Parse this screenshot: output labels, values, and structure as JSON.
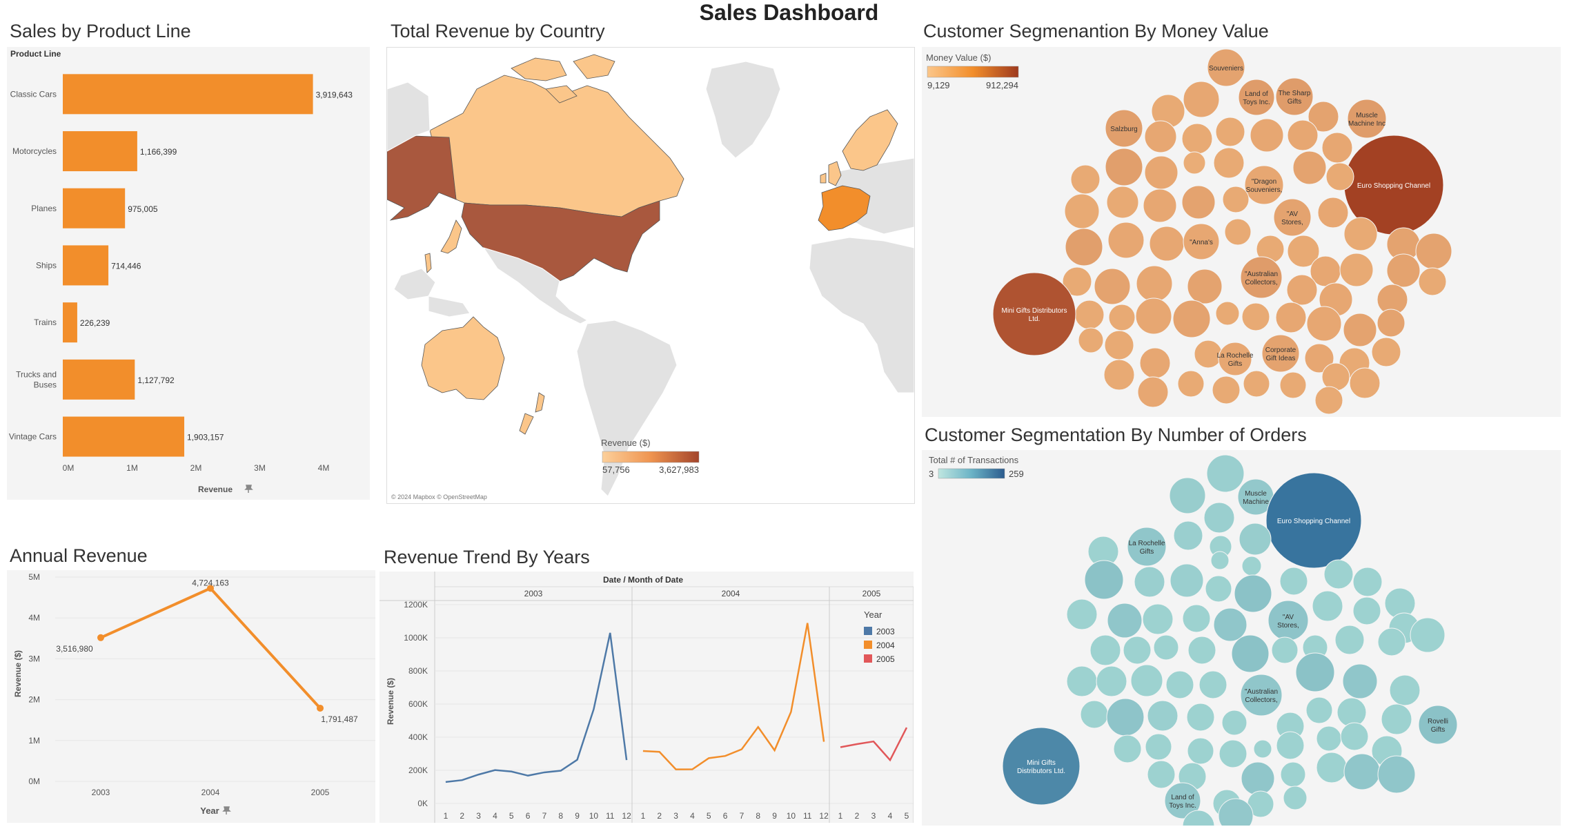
{
  "dashboard": {
    "title": "Sales Dashboard"
  },
  "colors": {
    "orange": "#f28e2b",
    "blue2003": "#4e79a7",
    "orange2004": "#f28e2b",
    "red2005": "#e15759",
    "teal_light": "#a9ddd6",
    "teal_dark": "#2e6b99",
    "money_low": "#fbc68a",
    "money_high": "#9e3a1e"
  },
  "product_line": {
    "title": "Sales by Product Line",
    "header": "Product Line",
    "axis_label": "Revenue",
    "chart_data": {
      "type": "bar",
      "orientation": "horizontal",
      "categories": [
        "Classic Cars",
        "Motorcycles",
        "Planes",
        "Ships",
        "Trains",
        "Trucks and Buses",
        "Vintage Cars"
      ],
      "category_lines": [
        [
          "Classic Cars"
        ],
        [
          "Motorcycles"
        ],
        [
          "Planes"
        ],
        [
          "Ships"
        ],
        [
          "Trains"
        ],
        [
          "Trucks and",
          "Buses"
        ],
        [
          "Vintage Cars"
        ]
      ],
      "values": [
        3919643,
        1166399,
        975005,
        714446,
        226239,
        1127792,
        1903157
      ],
      "value_labels": [
        "3,919,643",
        "1,166,399",
        "975,005",
        "714,446",
        "226,239",
        "1,127,792",
        "1,903,157"
      ],
      "xlim": [
        0,
        4400000
      ],
      "ticks": [
        0,
        1000000,
        2000000,
        3000000,
        4000000
      ],
      "tick_labels": [
        "0M",
        "1M",
        "2M",
        "3M",
        "4M"
      ],
      "xlabel": "Revenue"
    }
  },
  "country": {
    "title": "Total Revenue by Country",
    "legend_title": "Revenue ($)",
    "legend_min": "57,756",
    "legend_max": "3,627,983",
    "attribution": "© 2024 Mapbox © OpenStreetMap"
  },
  "money_seg": {
    "title": "Customer Segmenantion By Money Value",
    "legend_title": "Money Value ($)",
    "legend_min": "9,129",
    "legend_max": "912,294",
    "labels": {
      "souveniers": [
        "Souveniers"
      ],
      "land_of_toys": [
        "Land of",
        "Toys Inc."
      ],
      "sharp_gifts": [
        "The Sharp",
        "Gifts"
      ],
      "muscle": [
        "Muscle",
        "Machine Inc"
      ],
      "salzburg": [
        "Salzburg"
      ],
      "euro": [
        "Euro Shopping Channel"
      ],
      "dragon": [
        "\"Dragon",
        "Souveniers,"
      ],
      "av": [
        "\"AV",
        "Stores,"
      ],
      "annas": [
        "\"Anna's"
      ],
      "australian": [
        "\"Australian",
        "Collectors,"
      ],
      "mini": [
        "Mini Gifts Distributors",
        "Ltd."
      ],
      "la_rochelle": [
        "La Rochelle",
        "Gifts"
      ],
      "corporate": [
        "Corporate",
        "Gift Ideas"
      ]
    }
  },
  "orders_seg": {
    "title": "Customer Segmentation By Number of Orders",
    "legend_title": "Total # of Transactions",
    "legend_min": "3",
    "legend_max": "259",
    "labels": {
      "muscle": [
        "Muscle",
        "Machine"
      ],
      "euro": [
        "Euro Shopping Channel"
      ],
      "la_rochelle": [
        "La Rochelle",
        "Gifts"
      ],
      "av": [
        "\"AV",
        "Stores,"
      ],
      "australian": [
        "\"Australian",
        "Collectors,"
      ],
      "rovelli": [
        "Rovelli",
        "Gifts"
      ],
      "mini": [
        "Mini Gifts",
        "Distributors Ltd."
      ],
      "land_of_toys": [
        "Land of",
        "Toys Inc."
      ]
    }
  },
  "annual": {
    "title": "Annual Revenue",
    "chart_data": {
      "type": "line",
      "categories": [
        "2003",
        "2004",
        "2005"
      ],
      "values": [
        3516980,
        4724163,
        1791487
      ],
      "value_labels": [
        "3,516,980",
        "4,724,163",
        "1,791,487"
      ],
      "ylim": [
        0,
        5000000
      ],
      "ticks": [
        0,
        1000000,
        2000000,
        3000000,
        4000000,
        5000000
      ],
      "tick_labels": [
        "0M",
        "1M",
        "2M",
        "3M",
        "4M",
        "5M"
      ],
      "xlabel": "Year",
      "ylabel": "Revenue ($)"
    }
  },
  "trend": {
    "title": "Revenue Trend By Years",
    "header": "Date  /  Month of Date",
    "legend_title": "Year",
    "chart_data": {
      "type": "line",
      "ylabel": "Revenue ($)",
      "ylim": [
        0,
        1200000
      ],
      "ticks": [
        0,
        200000,
        400000,
        600000,
        800000,
        1000000,
        1200000
      ],
      "tick_labels": [
        "0K",
        "200K",
        "400K",
        "600K",
        "800K",
        "1000K",
        "1200K"
      ],
      "series": [
        {
          "name": "2003",
          "x": [
            1,
            2,
            3,
            4,
            5,
            6,
            7,
            8,
            9,
            10,
            11,
            12
          ],
          "values": [
            129754,
            140836,
            174505,
            201609,
            192673,
            168083,
            187731,
            197810,
            263973,
            568291,
            1029838,
            261876
          ]
        },
        {
          "name": "2004",
          "x": [
            1,
            2,
            3,
            4,
            5,
            6,
            7,
            8,
            9,
            10,
            11,
            12
          ],
          "values": [
            316577,
            311419,
            205733,
            206148,
            273438,
            286674,
            327144,
            461501,
            320750,
            552924,
            1089048,
            372803
          ]
        },
        {
          "name": "2005",
          "x": [
            1,
            2,
            3,
            4,
            5
          ],
          "values": [
            339543,
            358187,
            374263,
            261633,
            457861
          ]
        }
      ]
    }
  }
}
